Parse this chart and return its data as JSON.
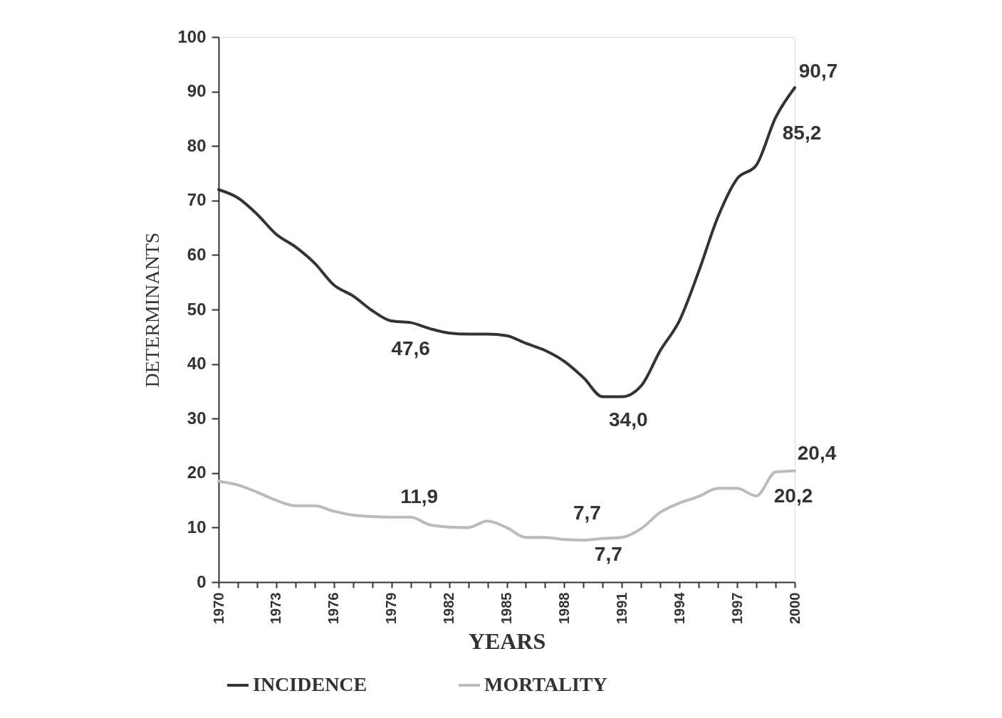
{
  "chart_data": {
    "type": "line",
    "xlabel": "YEARS",
    "ylabel": "DETERMINANTS",
    "x": [
      1970,
      1971,
      1972,
      1973,
      1974,
      1975,
      1976,
      1977,
      1978,
      1979,
      1980,
      1981,
      1982,
      1983,
      1984,
      1985,
      1986,
      1987,
      1988,
      1989,
      1990,
      1991,
      1992,
      1993,
      1994,
      1995,
      1996,
      1997,
      1998,
      1999,
      2000
    ],
    "series": [
      {
        "name": "INCIDENCE",
        "color": "#333333",
        "values": [
          72,
          70.5,
          67.5,
          63.8,
          61.5,
          58.5,
          54.5,
          52.5,
          49.8,
          47.9,
          47.6,
          46.5,
          45.7,
          45.5,
          45.5,
          45.2,
          43.8,
          42.5,
          40.5,
          37.5,
          34.0,
          34.0,
          36.0,
          42.5,
          48.0,
          57,
          67,
          74,
          76.5,
          85.2,
          90.7
        ]
      },
      {
        "name": "MORTALITY",
        "color": "#bbbbbb",
        "values": [
          18.5,
          17.8,
          16.5,
          15.0,
          14.0,
          14.0,
          13.0,
          12.3,
          12.0,
          11.9,
          11.9,
          10.5,
          10.1,
          10.0,
          11.2,
          10.0,
          8.2,
          8.2,
          7.8,
          7.7,
          8.0,
          8.2,
          9.8,
          12.8,
          14.5,
          15.7,
          17.2,
          17.2,
          15.8,
          20.2,
          20.4
        ]
      }
    ],
    "xlim": [
      1970,
      2000
    ],
    "xticks": [
      1970,
      {
        "value": 1971,
        "label": null
      },
      {
        "value": 1972,
        "label": null
      },
      1973,
      {
        "value": 1974,
        "label": null
      },
      {
        "value": 1975,
        "label": null
      },
      1976,
      {
        "value": 1977,
        "label": null
      },
      {
        "value": 1978,
        "label": null
      },
      1979,
      {
        "value": 1980,
        "label": null
      },
      {
        "value": 1981,
        "label": null
      },
      1982,
      {
        "value": 1983,
        "label": null
      },
      {
        "value": 1984,
        "label": null
      },
      1985,
      {
        "value": 1986,
        "label": null
      },
      {
        "value": 1987,
        "label": null
      },
      1988,
      {
        "value": 1989,
        "label": null
      },
      {
        "value": 1990,
        "label": null
      },
      1991,
      {
        "value": 1992,
        "label": null
      },
      {
        "value": 1993,
        "label": null
      },
      1994,
      {
        "value": 1995,
        "label": null
      },
      {
        "value": 1996,
        "label": null
      },
      1997,
      {
        "value": 1998,
        "label": null
      },
      {
        "value": 1999,
        "label": null
      },
      2000
    ],
    "ylim": [
      0,
      100
    ],
    "yticks": [
      0,
      10,
      20,
      30,
      40,
      50,
      60,
      70,
      80,
      90,
      100
    ],
    "grid": false,
    "legend": "bottom",
    "marker": "none",
    "line_style": "solid",
    "annotations": [
      {
        "text": "47,6",
        "x": 1980,
        "y": 47.6
      },
      {
        "text": "34,0",
        "x": 1991,
        "y": 34.0
      },
      {
        "text": "90,7",
        "x": 2000,
        "y": 90.7
      },
      {
        "text": "85,2",
        "x": 1999,
        "y": 85.2
      },
      {
        "text": "11,9",
        "x": 1980,
        "y": 11.9
      },
      {
        "text": "7,7",
        "x": 1989,
        "y": 7.7
      },
      {
        "text": "7,7",
        "x": 1990,
        "y": 7.7
      },
      {
        "text": "20,4",
        "x": 2000,
        "y": 20.4
      },
      {
        "text": "20,2",
        "x": 1999,
        "y": 20.2
      }
    ]
  }
}
